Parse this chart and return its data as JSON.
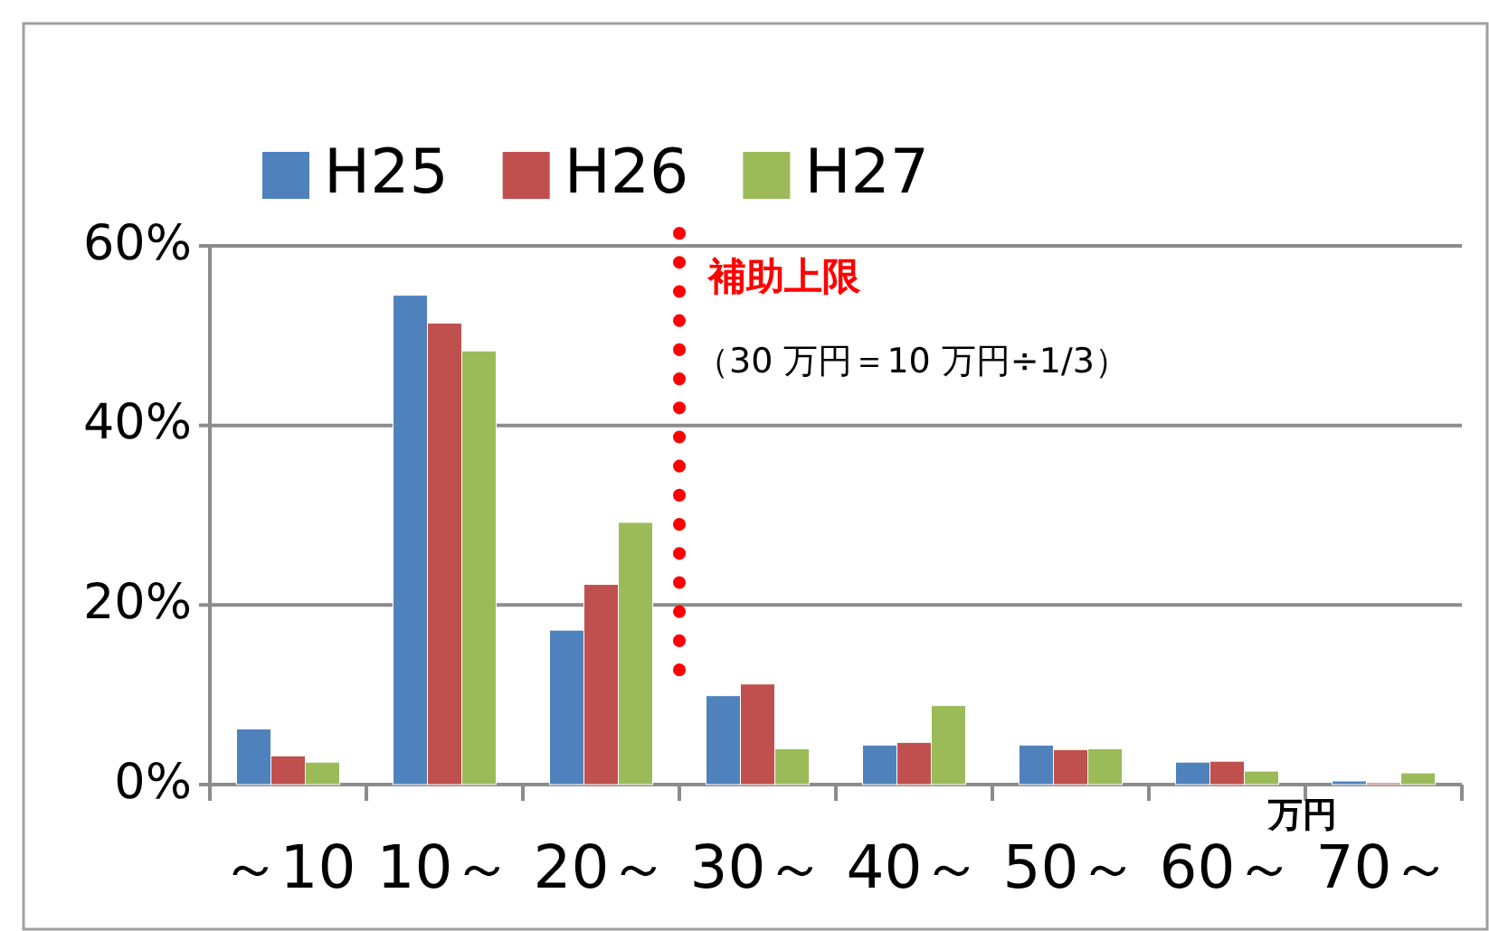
{
  "chart_data": {
    "type": "bar",
    "categories": [
      "～10",
      "10～",
      "20～",
      "30～",
      "40～",
      "50～",
      "60～",
      "70～"
    ],
    "series": [
      {
        "name": "H25",
        "color": "#4f81bd",
        "values": [
          6.2,
          54.5,
          17.2,
          9.9,
          4.4,
          4.4,
          2.5,
          0.4
        ]
      },
      {
        "name": "H26",
        "color": "#c0504d",
        "values": [
          3.2,
          51.4,
          22.3,
          11.2,
          4.7,
          3.9,
          2.6,
          0.2
        ]
      },
      {
        "name": "H27",
        "color": "#9bbb59",
        "values": [
          2.5,
          48.3,
          29.2,
          4.0,
          8.8,
          4.0,
          1.5,
          1.3
        ]
      }
    ],
    "xlabel": "万円",
    "ylim": [
      0,
      60
    ],
    "yticks": [
      {
        "value": 0,
        "label": "0%"
      },
      {
        "value": 20,
        "label": "20%"
      },
      {
        "value": 40,
        "label": "40%"
      },
      {
        "value": 60,
        "label": "60%"
      }
    ],
    "grid": "y",
    "legend": "top left",
    "ref_lines": [
      {
        "axis": "x",
        "value": "30～",
        "label": "補助上限",
        "color": "#ff0000",
        "line_style": "dotted"
      }
    ],
    "annotations": [
      "（30 万円＝10 万円÷1/3）"
    ]
  }
}
